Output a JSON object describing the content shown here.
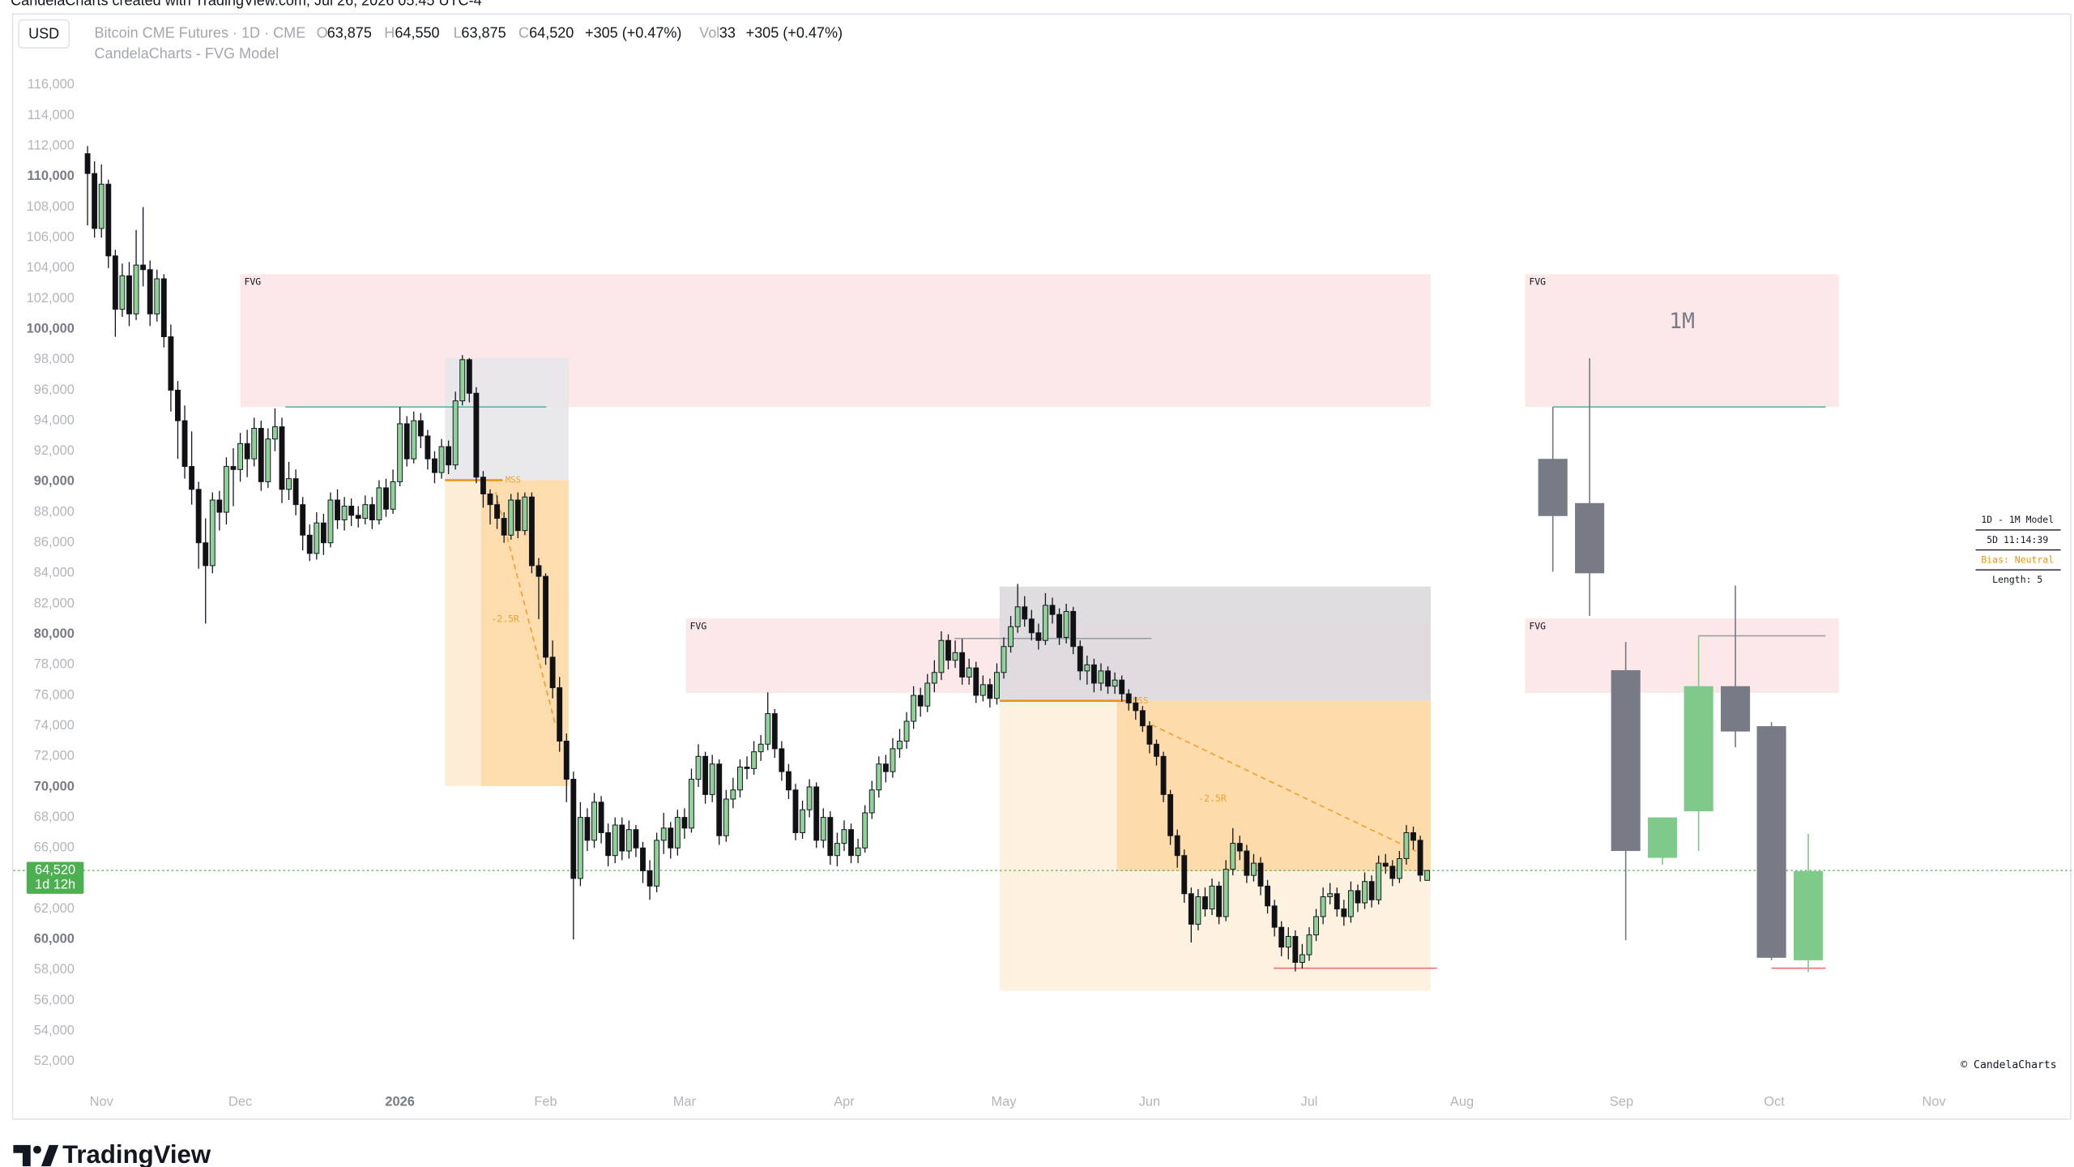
{
  "watermark": "CandelaCharts created with TradingView.com, Jul 26, 2026 05:45 UTC-4",
  "header": {
    "currency": "USD",
    "symbol": "Bitcoin CME Futures · 1D · CME",
    "o_label": "O",
    "o": "63,875",
    "h_label": "H",
    "h": "64,550",
    "l_label": "L",
    "l": "63,875",
    "c_label": "C",
    "c": "64,520",
    "change": "+305 (+0.47%)",
    "vol_label": "Vol",
    "vol": "33",
    "vol_change": "+305 (+0.47%)",
    "indicator": "CandelaCharts - FVG Model"
  },
  "model_table": [
    "1D - 1M Model",
    "5D 11:14:39",
    "Bias: Neutral",
    "Length: 5"
  ],
  "copyright": "© CandelaCharts",
  "brand": "TradingView",
  "chart_data": {
    "type": "candlestick",
    "panel_label": "1M",
    "grid": false,
    "xlim": [
      -10.7,
      285.8
    ],
    "ylim": [
      50100,
      120700
    ],
    "xticks": [
      {
        "value": 2,
        "label": "Nov"
      },
      {
        "value": 22,
        "label": "Dec"
      },
      {
        "value": 45,
        "label": "2026"
      },
      {
        "value": 66,
        "label": "Feb"
      },
      {
        "value": 86,
        "label": "Mar"
      },
      {
        "value": 109,
        "label": "Apr"
      },
      {
        "value": 132,
        "label": "May"
      },
      {
        "value": 153,
        "label": "Jun"
      },
      {
        "value": 176,
        "label": "Jul"
      },
      {
        "value": 198,
        "label": "Aug"
      },
      {
        "value": 221,
        "label": "Sep"
      },
      {
        "value": 243,
        "label": "Oct"
      },
      {
        "value": 266,
        "label": "Nov"
      }
    ],
    "yticks": [
      {
        "value": 52000,
        "label": "52,000"
      },
      {
        "value": 54000,
        "label": "54,000"
      },
      {
        "value": 56000,
        "label": "56,000"
      },
      {
        "value": 58000,
        "label": "58,000"
      },
      {
        "value": 60000,
        "label": "60,000"
      },
      {
        "value": 62000,
        "label": "62,000"
      },
      {
        "value": 64000,
        "label": "64,000"
      },
      {
        "value": 66000,
        "label": "66,000"
      },
      {
        "value": 68000,
        "label": "68,000"
      },
      {
        "value": 70000,
        "label": "70,000"
      },
      {
        "value": 72000,
        "label": "72,000"
      },
      {
        "value": 74000,
        "label": "74,000"
      },
      {
        "value": 76000,
        "label": "76,000"
      },
      {
        "value": 78000,
        "label": "78,000"
      },
      {
        "value": 80000,
        "label": "80,000"
      },
      {
        "value": 82000,
        "label": "82,000"
      },
      {
        "value": 84000,
        "label": "84,000"
      },
      {
        "value": 86000,
        "label": "86,000"
      },
      {
        "value": 88000,
        "label": "88,000"
      },
      {
        "value": 90000,
        "label": "90,000"
      },
      {
        "value": 92000,
        "label": "92,000"
      },
      {
        "value": 94000,
        "label": "94,000"
      },
      {
        "value": 96000,
        "label": "96,000"
      },
      {
        "value": 98000,
        "label": "98,000"
      },
      {
        "value": 100000,
        "label": "100,000"
      },
      {
        "value": 102000,
        "label": "102,000"
      },
      {
        "value": 104000,
        "label": "104,000"
      },
      {
        "value": 106000,
        "label": "106,000"
      },
      {
        "value": 108000,
        "label": "108,000"
      },
      {
        "value": 110000,
        "label": "110,000"
      },
      {
        "value": 112000,
        "label": "112,000"
      },
      {
        "value": 114000,
        "label": "114,000"
      },
      {
        "value": 116000,
        "label": "116,000"
      }
    ],
    "last_price": {
      "value": 64520,
      "label": "64,520",
      "countdown": "1d 12h",
      "color": "#4caf50"
    },
    "candles": {
      "up_color": "#8fd196",
      "down_color": "#111111",
      "open": [
        111500,
        110200,
        106600,
        109500,
        104800,
        101300,
        103500,
        101000,
        104200,
        103900,
        101000,
        103300,
        99500,
        96000,
        94000,
        91000,
        89500,
        86000,
        84500,
        88800,
        88000,
        91000,
        90800,
        92500,
        91500,
        93500,
        90000,
        92800,
        93600,
        89500,
        90200,
        88500,
        86500,
        85300,
        87300,
        86000,
        88800,
        87500,
        88400,
        87800,
        87600,
        88500,
        87500,
        89600,
        88200,
        90000,
        93800,
        91500,
        94000,
        93000,
        91500,
        90600,
        92300,
        91100,
        95300,
        98000,
        95800,
        90300,
        89200,
        88500,
        87600,
        86500,
        88800,
        86800,
        89000,
        84500,
        83800,
        78500,
        76500,
        73000,
        70500,
        64000,
        68000,
        66500,
        69000,
        67000,
        65500,
        67500,
        65800,
        67200,
        66000,
        64500,
        63500,
        66500,
        67300,
        66000,
        68000,
        67300,
        70500,
        72000,
        69500,
        71500,
        66800,
        69200,
        69800,
        71300,
        71200,
        72300,
        72800,
        74800,
        72500,
        71000,
        69800,
        67000,
        68500,
        70000,
        66500,
        68000,
        65500,
        66300,
        67200,
        65500,
        66000,
        68300,
        69800,
        71500,
        71000,
        72500,
        73000,
        74300,
        76000,
        75300,
        76800,
        77500,
        79600,
        78300,
        78800,
        77200,
        77800,
        76000,
        76700,
        75800,
        77500,
        79200,
        80500,
        81800,
        81000,
        80100,
        79600,
        81900,
        81300,
        79800,
        81500,
        79200,
        77600,
        78000,
        76800,
        77600,
        76600,
        77000,
        76100,
        75500,
        75000,
        74000,
        72800,
        72000,
        69500,
        66800,
        65500,
        63000,
        61000,
        62800,
        62000,
        63500,
        61500,
        64600,
        66300,
        65800,
        64200,
        65000,
        63500,
        62200,
        60800,
        59500,
        60200,
        58500,
        59000,
        60300,
        61500,
        62800,
        63000,
        62000,
        61500,
        63200,
        62400,
        63800,
        62600,
        65000,
        64800,
        64000,
        65300,
        67000,
        66500,
        63875
      ],
      "high": [
        112000,
        111000,
        110800,
        109800,
        105200,
        104300,
        104400,
        106500,
        108000,
        104500,
        103900,
        103600,
        100300,
        96600,
        95000,
        93300,
        90000,
        87600,
        89300,
        89400,
        91600,
        92200,
        93200,
        93400,
        94200,
        94000,
        93500,
        94800,
        94200,
        91300,
        90800,
        89000,
        87200,
        88000,
        87900,
        89300,
        89500,
        89000,
        88900,
        88400,
        89100,
        89000,
        90100,
        90200,
        90800,
        94900,
        94300,
        94600,
        94500,
        93400,
        92000,
        92800,
        92700,
        95900,
        98300,
        98100,
        96200,
        90700,
        89500,
        89100,
        88000,
        89200,
        89300,
        89300,
        89300,
        85000,
        84000,
        79600,
        77200,
        73500,
        71000,
        69000,
        68600,
        69600,
        69400,
        67600,
        68000,
        68000,
        67800,
        67500,
        66400,
        65200,
        67000,
        68300,
        67700,
        68500,
        68600,
        71200,
        72800,
        72300,
        72100,
        71800,
        69800,
        70600,
        71800,
        72000,
        73000,
        73400,
        76200,
        75100,
        73000,
        71500,
        70200,
        69100,
        70500,
        70300,
        68600,
        68400,
        67000,
        67800,
        67600,
        66600,
        68800,
        70400,
        72000,
        72100,
        73200,
        73800,
        74900,
        76600,
        76500,
        77400,
        78300,
        80200,
        80000,
        79600,
        79700,
        78400,
        78200,
        77300,
        77100,
        78100,
        79800,
        81200,
        83300,
        82500,
        81600,
        80700,
        82700,
        82400,
        81700,
        82000,
        81800,
        79600,
        78600,
        78400,
        78100,
        77900,
        77500,
        77300,
        76400,
        75900,
        75300,
        74300,
        73100,
        72300,
        69800,
        67200,
        65900,
        63400,
        63300,
        63400,
        64000,
        63800,
        65200,
        67300,
        66800,
        66200,
        65600,
        65400,
        63900,
        62600,
        61200,
        60800,
        60600,
        59700,
        60800,
        62000,
        63400,
        63700,
        63400,
        62600,
        63800,
        63600,
        64400,
        64200,
        65500,
        65600,
        65200,
        65800,
        67500,
        67400,
        66800,
        64550
      ],
      "low": [
        106800,
        106000,
        106000,
        104000,
        99500,
        100800,
        100200,
        100600,
        102800,
        100200,
        100500,
        98800,
        94600,
        91500,
        90200,
        88500,
        84300,
        80700,
        84000,
        86800,
        87200,
        88400,
        90000,
        90300,
        91000,
        89400,
        89600,
        92000,
        88600,
        88800,
        87800,
        85500,
        84800,
        84900,
        85200,
        85700,
        86900,
        86800,
        87100,
        87000,
        87200,
        86900,
        87200,
        87700,
        87900,
        89700,
        91000,
        91200,
        92200,
        90800,
        89900,
        90200,
        90500,
        90800,
        95000,
        95200,
        89900,
        88300,
        87200,
        86900,
        86000,
        86200,
        86300,
        86500,
        84000,
        81000,
        78000,
        75800,
        72300,
        69000,
        60000,
        63500,
        65800,
        66000,
        66300,
        64800,
        65000,
        65200,
        65300,
        65400,
        63700,
        62600,
        63100,
        65600,
        65300,
        65500,
        66600,
        67000,
        70000,
        68900,
        69000,
        66200,
        66400,
        68600,
        69300,
        70500,
        70800,
        71700,
        72400,
        71900,
        70400,
        69200,
        66500,
        66600,
        68000,
        66000,
        66000,
        64900,
        64800,
        65800,
        65000,
        65000,
        65700,
        67900,
        69300,
        70300,
        70600,
        71900,
        72500,
        73800,
        74600,
        74900,
        76200,
        77000,
        77700,
        77800,
        76700,
        76700,
        75500,
        75600,
        75200,
        75400,
        77100,
        78800,
        80100,
        80500,
        79600,
        79000,
        79300,
        80700,
        79300,
        79400,
        78700,
        77000,
        76700,
        76200,
        76300,
        76100,
        76100,
        75600,
        75000,
        74400,
        73600,
        72200,
        71400,
        69000,
        66200,
        64700,
        62400,
        59800,
        60600,
        61500,
        61600,
        61000,
        61200,
        64200,
        65200,
        63700,
        63800,
        62900,
        61700,
        60200,
        58900,
        58700,
        57900,
        58100,
        58600,
        59900,
        61000,
        62300,
        61500,
        60900,
        61100,
        61800,
        62000,
        62100,
        62300,
        64300,
        63500,
        63700,
        64900,
        65900,
        63800,
        63875
      ],
      "close": [
        110200,
        106600,
        109500,
        104800,
        101300,
        103500,
        101000,
        104200,
        103900,
        101000,
        103300,
        99500,
        96000,
        94000,
        91000,
        89500,
        86000,
        84500,
        88800,
        88000,
        91000,
        90800,
        92500,
        91500,
        93500,
        90000,
        92800,
        93600,
        89500,
        90200,
        88500,
        86500,
        85300,
        87300,
        86000,
        88800,
        87500,
        88400,
        87800,
        87600,
        88500,
        87500,
        89600,
        88200,
        90000,
        93800,
        91500,
        94000,
        93000,
        91500,
        90600,
        92300,
        91100,
        95300,
        98000,
        95800,
        90300,
        89200,
        88500,
        87600,
        86500,
        88800,
        86800,
        89000,
        84500,
        83800,
        78500,
        76500,
        73000,
        70500,
        64000,
        68000,
        66500,
        69000,
        67000,
        65500,
        67500,
        65800,
        67200,
        66000,
        64500,
        63500,
        66500,
        67300,
        66000,
        68000,
        67300,
        70500,
        72000,
        69500,
        71500,
        66800,
        69200,
        69800,
        71300,
        71200,
        72300,
        72800,
        74800,
        72500,
        71000,
        69800,
        67000,
        68500,
        70000,
        66500,
        68000,
        65500,
        66300,
        67200,
        65500,
        66000,
        68300,
        69800,
        71500,
        71000,
        72500,
        73000,
        74300,
        76000,
        75300,
        76800,
        77500,
        79600,
        78300,
        78800,
        77200,
        77800,
        76000,
        76700,
        75800,
        77500,
        79200,
        80500,
        81800,
        81000,
        80100,
        79600,
        81900,
        81300,
        79800,
        81500,
        79200,
        77600,
        78000,
        76800,
        77600,
        76600,
        77000,
        76100,
        75500,
        75000,
        74000,
        72800,
        72000,
        69500,
        66800,
        65500,
        63000,
        61000,
        62800,
        62000,
        63500,
        61500,
        64600,
        66300,
        65800,
        64200,
        65000,
        63500,
        62200,
        60800,
        59500,
        60200,
        58500,
        59000,
        60300,
        61500,
        62800,
        63000,
        62000,
        61500,
        63200,
        62400,
        63800,
        62600,
        65000,
        64800,
        64000,
        65300,
        67000,
        66500,
        64215,
        64520
      ]
    },
    "monthly": {
      "up_color": "#7fc98a",
      "down_color": "#787b86",
      "x": [
        211.1,
        216.4,
        221.6,
        226.9,
        232.1,
        237.4,
        242.6,
        247.9
      ],
      "open": [
        91500,
        88600,
        77650,
        65350,
        68400,
        76600,
        73980,
        58640
      ],
      "high": [
        94900,
        98100,
        79500,
        68000,
        79900,
        83200,
        74240,
        66920
      ],
      "low": [
        84100,
        81200,
        59950,
        64900,
        65800,
        72600,
        58650,
        57860
      ],
      "close": [
        87750,
        84000,
        65800,
        68000,
        76600,
        73630,
        58800,
        64480
      ]
    },
    "zones": [
      {
        "label": "FVG",
        "x": [
          22,
          193.5
        ],
        "y": [
          94900,
          103600
        ],
        "color": "#fde6e7"
      },
      {
        "x": [
          51.5,
          69.3
        ],
        "y": [
          90100,
          98100
        ],
        "color": "#e7e7ea"
      },
      {
        "x": [
          51.5,
          56.7
        ],
        "y": [
          70060,
          90100
        ],
        "color": "#fdebd3"
      },
      {
        "x": [
          56.7,
          69.3
        ],
        "y": [
          70060,
          90100
        ],
        "color": "#fdd8a4"
      },
      {
        "label": "FVG",
        "x": [
          86.2,
          193.5
        ],
        "y": [
          76160,
          81040
        ],
        "color": "#fde6e7"
      },
      {
        "x": [
          131.4,
          193.5
        ],
        "y": [
          75640,
          83130
        ],
        "color": "#dcd9dd"
      },
      {
        "x": [
          131.4,
          193.5
        ],
        "y": [
          56640,
          75640
        ],
        "color": "#fdf0dd"
      },
      {
        "x": [
          148.3,
          193.5
        ],
        "y": [
          64480,
          75640
        ],
        "color": "#fdd8a4"
      },
      {
        "label": "FVG",
        "x": [
          207.1,
          252.3
        ],
        "y": [
          94900,
          103600
        ],
        "color": "#fde6e7"
      },
      {
        "label": "FVG",
        "x": [
          207.1,
          252.3
        ],
        "y": [
          76160,
          81040
        ],
        "color": "#fde6e7"
      }
    ],
    "levels": [
      {
        "y": 94900,
        "x": [
          28.5,
          66.1
        ],
        "color": "#5fb3ad"
      },
      {
        "label": "MSS",
        "y": 90100,
        "x": [
          51.5,
          59.8
        ],
        "color": "#e8940e"
      },
      {
        "y": 79730,
        "x": [
          124.9,
          153.3
        ],
        "color": "#9aa0a6"
      },
      {
        "label": "MSS",
        "y": 75640,
        "x": [
          131.4,
          150.2
        ],
        "color": "#e8940e"
      },
      {
        "y": 58120,
        "x": [
          170.9,
          194.4
        ],
        "color": "#e57373"
      },
      {
        "y": 94900,
        "x": [
          211.1,
          250.4
        ],
        "color": "#5fb3ad"
      },
      {
        "y": 79900,
        "x": [
          232.1,
          250.4
        ],
        "color": "#9aa0a6"
      },
      {
        "y": 58120,
        "x": [
          242.6,
          250.4
        ],
        "color": "#e57373"
      }
    ],
    "targets": [
      {
        "label": "-2.5R",
        "x": [
          58.8,
          67.4
        ],
        "y": [
          89320,
          74070
        ],
        "color": "#f0a030"
      },
      {
        "label": "-2.5R",
        "x": [
          153.3,
          191.4
        ],
        "y": [
          74070,
          65790
        ],
        "color": "#f0a030"
      }
    ]
  }
}
